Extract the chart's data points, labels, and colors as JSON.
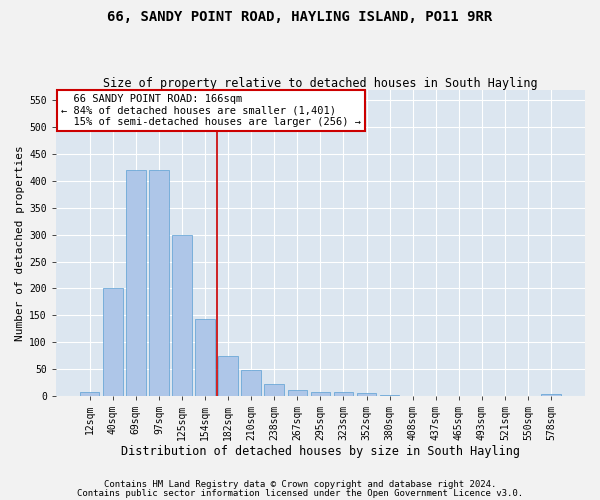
{
  "title": "66, SANDY POINT ROAD, HAYLING ISLAND, PO11 9RR",
  "subtitle": "Size of property relative to detached houses in South Hayling",
  "xlabel": "Distribution of detached houses by size in South Hayling",
  "ylabel": "Number of detached properties",
  "footer1": "Contains HM Land Registry data © Crown copyright and database right 2024.",
  "footer2": "Contains public sector information licensed under the Open Government Licence v3.0.",
  "categories": [
    "12sqm",
    "40sqm",
    "69sqm",
    "97sqm",
    "125sqm",
    "154sqm",
    "182sqm",
    "210sqm",
    "238sqm",
    "267sqm",
    "295sqm",
    "323sqm",
    "352sqm",
    "380sqm",
    "408sqm",
    "437sqm",
    "465sqm",
    "493sqm",
    "521sqm",
    "550sqm",
    "578sqm"
  ],
  "values": [
    8,
    200,
    420,
    420,
    300,
    143,
    75,
    48,
    23,
    12,
    8,
    7,
    5,
    2,
    1,
    0,
    0,
    0,
    0,
    0,
    3
  ],
  "bar_color": "#aec6e8",
  "bar_edge_color": "#5a9fd4",
  "vline_x": 5.5,
  "vline_color": "#cc0000",
  "annotation_text": "  66 SANDY POINT ROAD: 166sqm\n← 84% of detached houses are smaller (1,401)\n  15% of semi-detached houses are larger (256) →",
  "annotation_box_color": "#ffffff",
  "annotation_box_edge": "#cc0000",
  "ylim": [
    0,
    570
  ],
  "yticks": [
    0,
    50,
    100,
    150,
    200,
    250,
    300,
    350,
    400,
    450,
    500,
    550
  ],
  "background_color": "#dce6f0",
  "fig_background_color": "#f2f2f2",
  "title_fontsize": 10,
  "subtitle_fontsize": 8.5,
  "xlabel_fontsize": 8.5,
  "ylabel_fontsize": 8,
  "tick_fontsize": 7,
  "footer_fontsize": 6.5,
  "annotation_fontsize": 7.5
}
